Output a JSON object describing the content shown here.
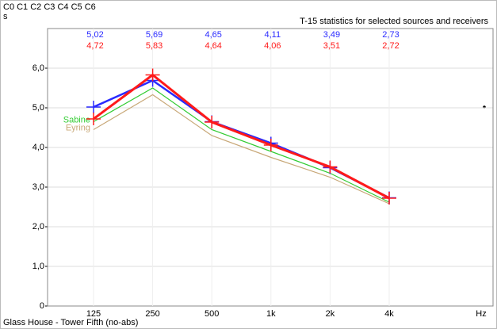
{
  "chart_data": {
    "type": "line",
    "header": "C0 C1 C2 C3 C4 C5 C6",
    "y_label": "s",
    "title": "T-15 statistics for selected sources and receivers",
    "x_label": "Hz",
    "footer": "Glass House - Tower Fifth (no-abs)",
    "categories": [
      "125",
      "250",
      "500",
      "1k",
      "2k",
      "4k"
    ],
    "series": [
      {
        "color": "#2a2aff",
        "width": 2.5,
        "values": [
          5.02,
          5.69,
          4.65,
          4.11,
          3.49,
          2.73
        ],
        "value_labels": [
          "5,02",
          "5,69",
          "4,65",
          "4,11",
          "3,49",
          "2,73"
        ]
      },
      {
        "color": "#ff1a1a",
        "width": 3,
        "values": [
          4.72,
          5.83,
          4.64,
          4.06,
          3.51,
          2.72
        ],
        "value_labels": [
          "4,72",
          "5,83",
          "4,64",
          "4,06",
          "3,51",
          "2,72"
        ]
      },
      {
        "name": "Sabine",
        "color": "#33cc33",
        "width": 1.2,
        "values": [
          4.65,
          5.5,
          4.45,
          3.9,
          3.35,
          2.62
        ]
      },
      {
        "name": "Eyring",
        "color": "#c8a878",
        "width": 1.2,
        "values": [
          4.45,
          5.33,
          4.3,
          3.75,
          3.25,
          2.58
        ]
      }
    ],
    "ylim": [
      0,
      7
    ],
    "yticks": [
      {
        "value": 0,
        "label": "0"
      },
      {
        "value": 1,
        "label": "1,0"
      },
      {
        "value": 2,
        "label": "2,0"
      },
      {
        "value": 3,
        "label": "3,0"
      },
      {
        "value": 4,
        "label": "4,0"
      },
      {
        "value": 5,
        "label": "5,0"
      },
      {
        "value": 6,
        "label": "6,0"
      }
    ],
    "grid": true
  }
}
